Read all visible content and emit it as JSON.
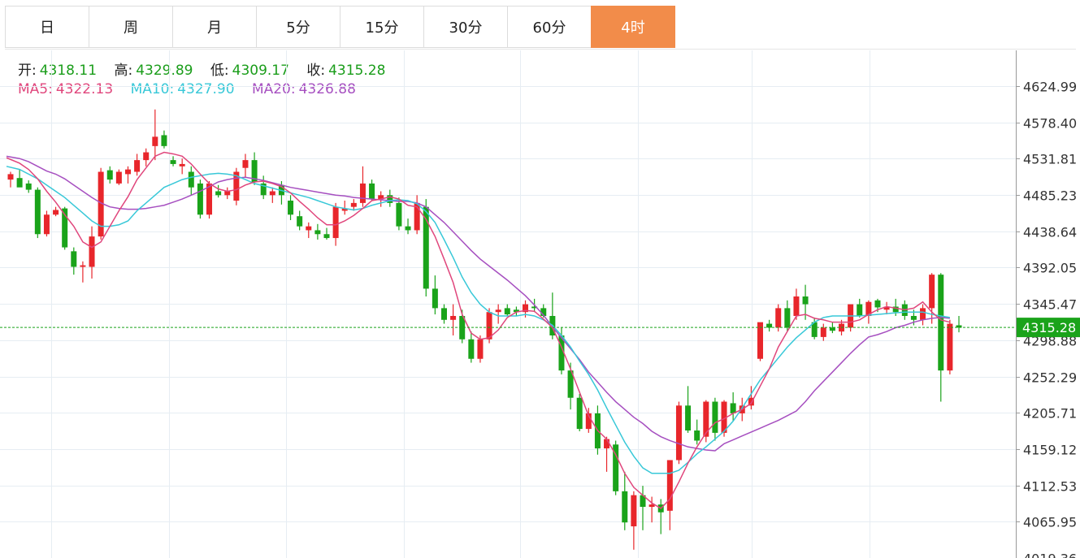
{
  "tabs": [
    {
      "label": "日",
      "active": false
    },
    {
      "label": "周",
      "active": false
    },
    {
      "label": "月",
      "active": false
    },
    {
      "label": "5分",
      "active": false
    },
    {
      "label": "15分",
      "active": false
    },
    {
      "label": "30分",
      "active": false
    },
    {
      "label": "60分",
      "active": false
    },
    {
      "label": "4时",
      "active": true
    }
  ],
  "ohlc": {
    "open_label": "开:",
    "open": "4318.11",
    "high_label": "高:",
    "high": "4329.89",
    "low_label": "低:",
    "low": "4309.17",
    "close_label": "收:",
    "close": "4315.28"
  },
  "ma": {
    "ma5_label": "MA5:",
    "ma5": "4322.13",
    "ma10_label": "MA10:",
    "ma10": "4327.90",
    "ma20_label": "MA20:",
    "ma20": "4326.88"
  },
  "colors": {
    "up": "#e8262b",
    "down": "#1aa31a",
    "ma5": "#e0467c",
    "ma10": "#38c8d8",
    "ma20": "#a64fc0",
    "active_tab": "#f28c4a"
  },
  "chart_data": {
    "type": "candlestick",
    "y_ticks": [
      "4624.99",
      "4578.40",
      "4531.81",
      "4485.23",
      "4438.64",
      "4392.05",
      "4345.47",
      "4298.88",
      "4252.29",
      "4205.71",
      "4159.12",
      "4112.53",
      "4065.95",
      "4019.36"
    ],
    "ylim": [
      4019.36,
      4624.99
    ],
    "last_price": "4315.28",
    "candles": [
      [
        4505,
        4515,
        4495,
        4512
      ],
      [
        4507,
        4518,
        4497,
        4495
      ],
      [
        4500,
        4504,
        4488,
        4492
      ],
      [
        4492,
        4495,
        4430,
        4435
      ],
      [
        4435,
        4465,
        4432,
        4460
      ],
      [
        4460,
        4470,
        4458,
        4466
      ],
      [
        4468,
        4470,
        4415,
        4418
      ],
      [
        4413,
        4418,
        4383,
        4393
      ],
      [
        4393,
        4400,
        4373,
        4395
      ],
      [
        4393,
        4445,
        4378,
        4432
      ],
      [
        4432,
        4520,
        4428,
        4515
      ],
      [
        4517,
        4522,
        4500,
        4505
      ],
      [
        4500,
        4518,
        4498,
        4515
      ],
      [
        4512,
        4522,
        4500,
        4518
      ],
      [
        4515,
        4538,
        4510,
        4530
      ],
      [
        4530,
        4545,
        4522,
        4540
      ],
      [
        4548,
        4595,
        4530,
        4560
      ],
      [
        4562,
        4568,
        4545,
        4548
      ],
      [
        4530,
        4535,
        4522,
        4525
      ],
      [
        4522,
        4532,
        4512,
        4525
      ],
      [
        4515,
        4522,
        4485,
        4495
      ],
      [
        4500,
        4505,
        4455,
        4460
      ],
      [
        4460,
        4503,
        4455,
        4500
      ],
      [
        4490,
        4498,
        4482,
        4485
      ],
      [
        4485,
        4495,
        4480,
        4490
      ],
      [
        4478,
        4520,
        4472,
        4515
      ],
      [
        4520,
        4538,
        4508,
        4530
      ],
      [
        4530,
        4540,
        4498,
        4502
      ],
      [
        4500,
        4510,
        4480,
        4485
      ],
      [
        4485,
        4495,
        4475,
        4490
      ],
      [
        4498,
        4503,
        4473,
        4485
      ],
      [
        4478,
        4485,
        4453,
        4460
      ],
      [
        4458,
        4465,
        4440,
        4445
      ],
      [
        4440,
        4450,
        4430,
        4445
      ],
      [
        4440,
        4448,
        4428,
        4435
      ],
      [
        4435,
        4443,
        4428,
        4430
      ],
      [
        4430,
        4475,
        4420,
        4470
      ],
      [
        4465,
        4478,
        4460,
        4468
      ],
      [
        4470,
        4480,
        4465,
        4475
      ],
      [
        4475,
        4522,
        4470,
        4500
      ],
      [
        4500,
        4505,
        4478,
        4480
      ],
      [
        4480,
        4490,
        4470,
        4485
      ],
      [
        4485,
        4492,
        4470,
        4475
      ],
      [
        4475,
        4482,
        4440,
        4445
      ],
      [
        4445,
        4455,
        4435,
        4440
      ],
      [
        4440,
        4485,
        4435,
        4475
      ],
      [
        4470,
        4480,
        4355,
        4365
      ],
      [
        4365,
        4382,
        4332,
        4340
      ],
      [
        4340,
        4345,
        4320,
        4325
      ],
      [
        4325,
        4345,
        4305,
        4330
      ],
      [
        4330,
        4338,
        4295,
        4300
      ],
      [
        4300,
        4310,
        4270,
        4275
      ],
      [
        4275,
        4305,
        4270,
        4300
      ],
      [
        4300,
        4340,
        4295,
        4335
      ],
      [
        4335,
        4345,
        4320,
        4338
      ],
      [
        4340,
        4345,
        4330,
        4332
      ],
      [
        4338,
        4342,
        4330,
        4335
      ],
      [
        4335,
        4350,
        4328,
        4345
      ],
      [
        4342,
        4352,
        4335,
        4340
      ],
      [
        4340,
        4345,
        4328,
        4330
      ],
      [
        4330,
        4360,
        4300,
        4305
      ],
      [
        4305,
        4315,
        4255,
        4260
      ],
      [
        4260,
        4270,
        4210,
        4225
      ],
      [
        4225,
        4230,
        4182,
        4185
      ],
      [
        4185,
        4212,
        4180,
        4205
      ],
      [
        4205,
        4215,
        4152,
        4160
      ],
      [
        4160,
        4175,
        4130,
        4172
      ],
      [
        4165,
        4170,
        4100,
        4105
      ],
      [
        4105,
        4130,
        4055,
        4065
      ],
      [
        4060,
        4105,
        4030,
        4100
      ],
      [
        4100,
        4112,
        4055,
        4085
      ],
      [
        4085,
        4098,
        4065,
        4088
      ],
      [
        4088,
        4095,
        4050,
        4078
      ],
      [
        4080,
        4140,
        4055,
        4145
      ],
      [
        4145,
        4220,
        4140,
        4215
      ],
      [
        4215,
        4240,
        4180,
        4183
      ],
      [
        4183,
        4197,
        4165,
        4170
      ],
      [
        4175,
        4222,
        4168,
        4220
      ],
      [
        4220,
        4225,
        4170,
        4180
      ],
      [
        4180,
        4222,
        4175,
        4220
      ],
      [
        4218,
        4232,
        4195,
        4205
      ],
      [
        4205,
        4225,
        4195,
        4215
      ],
      [
        4215,
        4240,
        4210,
        4225
      ],
      [
        4275,
        4320,
        4272,
        4322
      ],
      [
        4320,
        4325,
        4310,
        4315
      ],
      [
        4315,
        4345,
        4310,
        4340
      ],
      [
        4340,
        4350,
        4310,
        4315
      ],
      [
        4330,
        4365,
        4325,
        4355
      ],
      [
        4355,
        4370,
        4325,
        4345
      ],
      [
        4322,
        4328,
        4300,
        4303
      ],
      [
        4303,
        4320,
        4298,
        4315
      ],
      [
        4315,
        4322,
        4308,
        4311
      ],
      [
        4310,
        4325,
        4305,
        4320
      ],
      [
        4315,
        4340,
        4310,
        4345
      ],
      [
        4345,
        4352,
        4328,
        4330
      ],
      [
        4330,
        4350,
        4320,
        4348
      ],
      [
        4350,
        4352,
        4335,
        4341
      ],
      [
        4338,
        4348,
        4332,
        4342
      ],
      [
        4342,
        4352,
        4330,
        4335
      ],
      [
        4345,
        4350,
        4325,
        4330
      ],
      [
        4330,
        4338,
        4318,
        4325
      ],
      [
        4325,
        4345,
        4318,
        4340
      ],
      [
        4340,
        4385,
        4320,
        4383
      ],
      [
        4383,
        4385,
        4220,
        4260
      ],
      [
        4260,
        4325,
        4255,
        4320
      ],
      [
        4318,
        4330,
        4309,
        4315
      ]
    ],
    "ma5": [
      4533,
      4526,
      4518,
      4506,
      4490,
      4476,
      4460,
      4445,
      4425,
      4418,
      4425,
      4445,
      4465,
      4483,
      4505,
      4520,
      4535,
      4540,
      4538,
      4535,
      4525,
      4512,
      4500,
      4493,
      4490,
      4492,
      4498,
      4502,
      4503,
      4500,
      4496,
      4488,
      4477,
      4467,
      4456,
      4447,
      4447,
      4452,
      4459,
      4468,
      4478,
      4480,
      4483,
      4480,
      4472,
      4470,
      4454,
      4432,
      4403,
      4373,
      4332,
      4308,
      4300,
      4302,
      4312,
      4328,
      4335,
      4337,
      4336,
      4326,
      4315,
      4290,
      4262,
      4232,
      4202,
      4183,
      4172,
      4152,
      4128,
      4110,
      4100,
      4090,
      4083,
      4095,
      4117,
      4141,
      4162,
      4180,
      4193,
      4198,
      4205,
      4210,
      4218,
      4240,
      4262,
      4290,
      4310,
      4330,
      4332,
      4327,
      4325,
      4322,
      4322,
      4322,
      4325,
      4332,
      4338,
      4342,
      4340,
      4338,
      4340,
      4348,
      4335,
      4325,
      4322
    ],
    "ma10": [
      4522,
      4518,
      4512,
      4506,
      4498,
      4490,
      4482,
      4472,
      4462,
      4452,
      4445,
      4445,
      4447,
      4452,
      4465,
      4475,
      4485,
      4495,
      4500,
      4505,
      4508,
      4510,
      4512,
      4513,
      4512,
      4510,
      4505,
      4500,
      4497,
      4494,
      4491,
      4488,
      4485,
      4482,
      4478,
      4474,
      4470,
      4468,
      4466,
      4468,
      4472,
      4475,
      4478,
      4479,
      4478,
      4474,
      4464,
      4450,
      4428,
      4405,
      4380,
      4360,
      4345,
      4335,
      4330,
      4330,
      4330,
      4332,
      4330,
      4325,
      4318,
      4305,
      4290,
      4272,
      4255,
      4235,
      4212,
      4190,
      4168,
      4150,
      4135,
      4128,
      4128,
      4128,
      4132,
      4142,
      4153,
      4162,
      4172,
      4182,
      4195,
      4212,
      4230,
      4248,
      4262,
      4276,
      4290,
      4302,
      4312,
      4322,
      4328,
      4330,
      4330,
      4330,
      4330,
      4331,
      4332,
      4333,
      4334,
      4335,
      4335,
      4335,
      4332,
      4330,
      4328
    ],
    "ma20": [
      4535,
      4532,
      4528,
      4522,
      4516,
      4512,
      4506,
      4498,
      4490,
      4482,
      4475,
      4470,
      4468,
      4467,
      4467,
      4468,
      4470,
      4472,
      4476,
      4480,
      4485,
      4490,
      4496,
      4502,
      4505,
      4507,
      4508,
      4506,
      4504,
      4501,
      4498,
      4495,
      4493,
      4491,
      4489,
      4487,
      4485,
      4484,
      4482,
      4481,
      4480,
      4479,
      4478,
      4477,
      4477,
      4475,
      4470,
      4460,
      4450,
      4438,
      4426,
      4414,
      4403,
      4394,
      4385,
      4376,
      4366,
      4356,
      4344,
      4331,
      4316,
      4302,
      4288,
      4274,
      4258,
      4245,
      4232,
      4220,
      4210,
      4200,
      4192,
      4182,
      4175,
      4170,
      4166,
      4162,
      4160,
      4158,
      4157,
      4166,
      4171,
      4176,
      4181,
      4186,
      4191,
      4196,
      4202,
      4208,
      4220,
      4234,
      4246,
      4258,
      4270,
      4282,
      4293,
      4303,
      4306,
      4310,
      4315,
      4318,
      4322,
      4325,
      4327,
      4328,
      4327
    ]
  }
}
